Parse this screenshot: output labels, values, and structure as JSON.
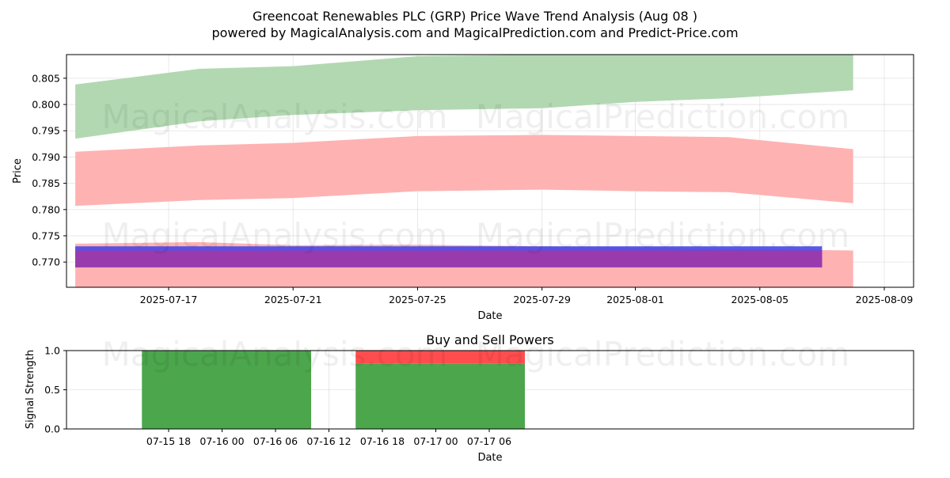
{
  "header": {
    "title": "Greencoat Renewables PLC (GRP) Price Wave Trend Analysis (Aug 08 )",
    "subtitle": "powered by MagicalAnalysis.com and MagicalPrediction.com and Predict-Price.com"
  },
  "watermarks": [
    "MagicalAnalysis.com",
    "MagicalPrediction.com"
  ],
  "chart_data": [
    {
      "type": "area",
      "xlabel": "Date",
      "ylabel": "Price",
      "x_ticks": [
        "2025-07-17",
        "2025-07-21",
        "2025-07-25",
        "2025-07-29",
        "2025-08-01",
        "2025-08-05",
        "2025-08-09"
      ],
      "y_ticks": [
        "0.770",
        "0.775",
        "0.780",
        "0.785",
        "0.790",
        "0.795",
        "0.800",
        "0.805"
      ],
      "ylim": [
        0.7652,
        0.8095
      ],
      "grid": true,
      "bands": [
        {
          "color": "#b2d8b2",
          "x": [
            "2025-07-14",
            "2025-07-18",
            "2025-07-21",
            "2025-07-25",
            "2025-07-29",
            "2025-08-01",
            "2025-08-04",
            "2025-08-08"
          ],
          "upper": [
            0.8038,
            0.8068,
            0.8073,
            0.8092,
            0.8098,
            0.8102,
            0.8108,
            0.8095
          ],
          "lower": [
            0.7935,
            0.7968,
            0.798,
            0.7989,
            0.7993,
            0.8005,
            0.8012,
            0.8027
          ]
        },
        {
          "color": "#ffb2b2",
          "x": [
            "2025-07-14",
            "2025-07-18",
            "2025-07-21",
            "2025-07-25",
            "2025-07-29",
            "2025-08-01",
            "2025-08-04",
            "2025-08-08"
          ],
          "upper": [
            0.791,
            0.7922,
            0.7927,
            0.794,
            0.7942,
            0.794,
            0.7938,
            0.7915
          ],
          "lower": [
            0.7807,
            0.7818,
            0.7822,
            0.7835,
            0.7838,
            0.7835,
            0.7833,
            0.7812
          ]
        },
        {
          "color": "#ffb2b2",
          "x": [
            "2025-07-14",
            "2025-07-18",
            "2025-07-21",
            "2025-07-25",
            "2025-07-29",
            "2025-08-01",
            "2025-08-04",
            "2025-08-08"
          ],
          "upper": [
            0.7735,
            0.7738,
            0.7732,
            0.7733,
            0.773,
            0.7728,
            0.7725,
            0.7722
          ],
          "lower": [
            0.7652,
            0.7652,
            0.7652,
            0.7652,
            0.7652,
            0.7652,
            0.7652,
            0.7652
          ]
        }
      ],
      "ranges": [
        {
          "color": "#4a4ae8",
          "x_start": "2025-07-14",
          "x_end": "2025-08-07",
          "low": 0.769,
          "high": 0.773
        },
        {
          "color": "#9e3aa8",
          "x_start": "2025-07-14",
          "x_end": "2025-08-07",
          "low": 0.769,
          "high": 0.7722
        }
      ]
    },
    {
      "type": "bar",
      "title": "Buy and Sell Powers",
      "xlabel": "Date",
      "ylabel": "Signal Strength",
      "x_ticks": [
        "07-15 18",
        "07-16 00",
        "07-16 06",
        "07-16 12",
        "07-16 18",
        "07-17 00",
        "07-17 06"
      ],
      "y_ticks": [
        "0.0",
        "0.5",
        "1.0"
      ],
      "ylim": [
        0,
        1
      ],
      "series": [
        {
          "name": "Buy",
          "color": "#4ca64c"
        },
        {
          "name": "Sell",
          "color": "#ff4d4d"
        }
      ],
      "bars": [
        {
          "start": "07-15 15",
          "end": "07-16 10",
          "buy": 1.0,
          "sell": 0.0
        },
        {
          "start": "07-16 15",
          "end": "07-17 10",
          "buy": 0.83,
          "sell": 0.17
        }
      ]
    }
  ]
}
